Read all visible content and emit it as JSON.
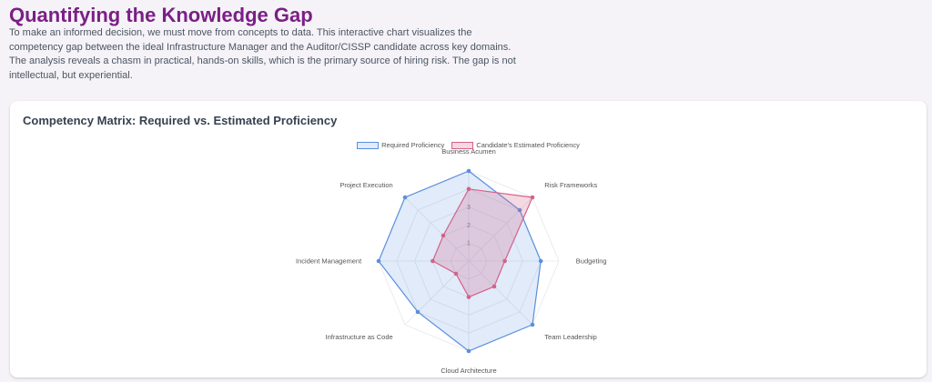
{
  "header": {
    "title": "Quantifying the Knowledge Gap",
    "description": "To make an informed decision, we must move from concepts to data. This interactive chart visualizes the competency gap between the ideal Infrastructure Manager and the Auditor/CISSP candidate across key domains. The analysis reveals a chasm in practical, hands-on skills, which is the primary source of hiring risk. The gap is not intellectual, but experiential."
  },
  "chart_data": {
    "type": "radar",
    "title": "Competency Matrix: Required vs. Estimated Proficiency",
    "categories": [
      "Business Acumen",
      "Risk Frameworks",
      "Budgeting",
      "Team Leadership",
      "Cloud Architecture",
      "Infrastructure as Code",
      "Incident Management",
      "Project Execution"
    ],
    "series": [
      {
        "name": "Required Proficiency",
        "values": [
          5,
          4,
          4,
          5,
          5,
          4,
          5,
          5
        ],
        "color": "#5b8fdc",
        "fill": "rgba(91,143,220,0.18)"
      },
      {
        "name": "Candidate's Estimated Proficiency",
        "values": [
          4,
          5,
          2,
          2,
          2,
          1,
          2,
          2
        ],
        "color": "#d4628a",
        "fill": "rgba(212,98,138,0.25)"
      }
    ],
    "rlim": [
      0,
      5
    ],
    "ticks": [
      "1",
      "2",
      "3"
    ],
    "legend_position": "top"
  },
  "colors": {
    "title": "#7b1f86",
    "grid": "#e5e7eb"
  }
}
